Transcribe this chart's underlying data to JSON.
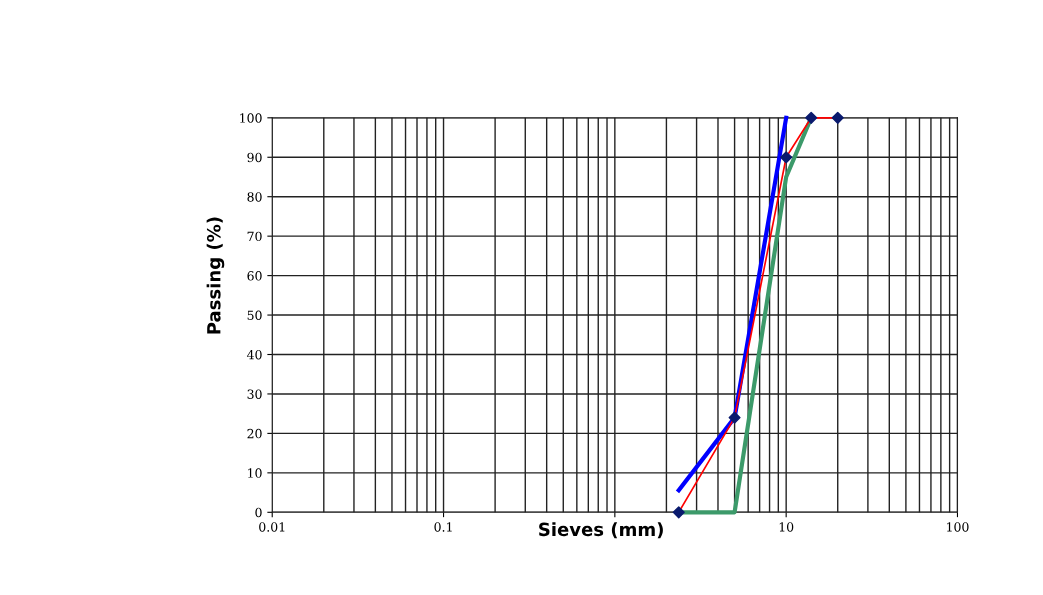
{
  "chart_data": {
    "type": "line",
    "xlabel": "Sieves (mm)",
    "ylabel": "Passing (%)",
    "log": "x",
    "grid": true,
    "xlim": [
      0.01,
      100
    ],
    "xticks": [
      0.01,
      0.1,
      {
        "value": 1,
        "label": null
      },
      10,
      100
    ],
    "ylim": [
      0,
      100
    ],
    "yticks": [
      0,
      10,
      20,
      30,
      40,
      50,
      60,
      70,
      80,
      90,
      100
    ],
    "series": [
      {
        "color": "#3c9a6a",
        "x": [
          2.36,
          5,
          10,
          14
        ],
        "values": [
          0,
          0,
          85,
          100
        ],
        "marker": "none"
      },
      {
        "color": "#0000ff",
        "x": [
          2.36,
          5,
          10
        ],
        "values": [
          5.6,
          24,
          100
        ],
        "marker": "none"
      },
      {
        "color": "#ff0000",
        "x": [
          2.36,
          5,
          10,
          14,
          20
        ],
        "values": [
          0,
          24,
          90,
          100,
          100
        ],
        "marker": "diamond",
        "colors": [
          "#0a1a6e",
          "#0a1a6e",
          "#0a1a6e",
          "#0a1a6e",
          "#0a1a6e"
        ]
      }
    ]
  }
}
